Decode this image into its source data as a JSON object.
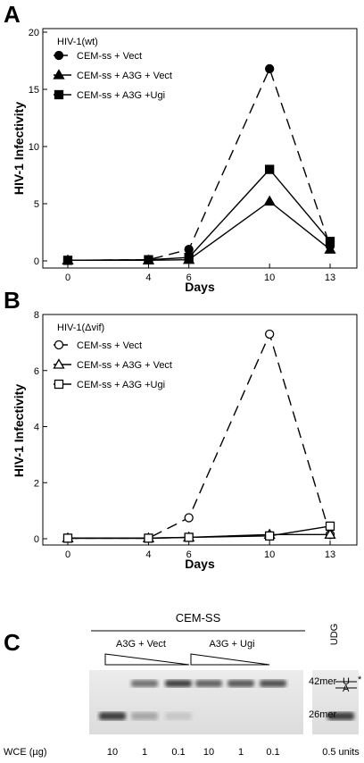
{
  "chart_data": [
    {
      "panel": "A",
      "type": "line",
      "title": "HIV-1(wt)",
      "xlabel": "Days",
      "ylabel": "HIV-1 Infectivity",
      "x": [
        0,
        4,
        6,
        10,
        13
      ],
      "x_ticks": [
        "0",
        "4",
        "6",
        "10",
        "13"
      ],
      "y_ticks": [
        "0",
        "5",
        "10",
        "15",
        "20"
      ],
      "ylim": [
        0,
        20
      ],
      "series": [
        {
          "name": "CEM-ss + Vect",
          "marker": "circle-filled",
          "dash": true,
          "values": [
            0.05,
            0.1,
            1.0,
            16.8,
            1.3
          ]
        },
        {
          "name": "CEM-ss + A3G + Vect",
          "marker": "triangle-filled",
          "dash": false,
          "values": [
            0.05,
            0.05,
            0.1,
            5.2,
            1.0
          ]
        },
        {
          "name": "CEM-ss + A3G +Ugi",
          "marker": "square-filled",
          "dash": false,
          "values": [
            0.05,
            0.1,
            0.3,
            8.0,
            1.7
          ]
        }
      ]
    },
    {
      "panel": "B",
      "type": "line",
      "title": "HIV-1(Δvif)",
      "xlabel": "Days",
      "ylabel": "HIV-1 Infectivity",
      "x": [
        0,
        4,
        6,
        10,
        13
      ],
      "x_ticks": [
        "0",
        "4",
        "6",
        "10",
        "13"
      ],
      "y_ticks": [
        "0",
        "2",
        "4",
        "6",
        "8"
      ],
      "ylim": [
        0,
        8
      ],
      "series": [
        {
          "name": "CEM-ss + Vect",
          "marker": "circle-open",
          "dash": true,
          "values": [
            0.02,
            0.02,
            0.75,
            7.3,
            0.15
          ]
        },
        {
          "name": "CEM-ss + A3G + Vect",
          "marker": "triangle-open",
          "dash": false,
          "values": [
            0.02,
            0.02,
            0.05,
            0.15,
            0.15
          ]
        },
        {
          "name": "CEM-ss + A3G +Ugi",
          "marker": "square-open",
          "dash": false,
          "values": [
            0.02,
            0.02,
            0.05,
            0.1,
            0.45
          ]
        }
      ]
    }
  ],
  "gel": {
    "panel": "C",
    "title": "CEM-SS",
    "group1": "A3G + Vect",
    "group2": "A3G + Ugi",
    "udg_label": "UDG",
    "band_top": "42mer",
    "band_bottom": "26mer",
    "diagram_top": "U",
    "diagram_bottom": "A",
    "star": "*",
    "wce_label": "WCE (µg)",
    "lanes": [
      "10",
      "1",
      "0.1",
      "10",
      "1",
      "0.1",
      "0.5 units"
    ]
  }
}
